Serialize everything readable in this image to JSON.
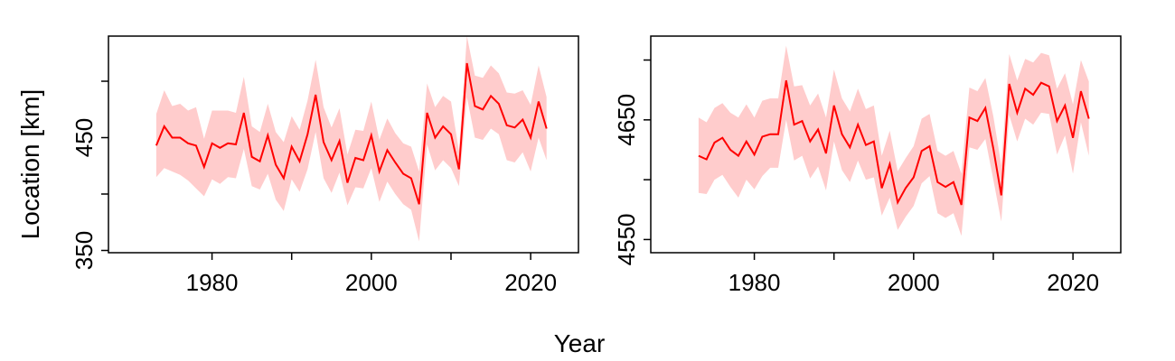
{
  "figure": {
    "xlabel": "Year",
    "ylabel": "Location [km]"
  },
  "colors": {
    "line": "#ff0000",
    "band": "#ffcccc",
    "axis": "#000000"
  },
  "chart_data": [
    {
      "type": "line",
      "xlim": [
        1967,
        2026
      ],
      "ylim": [
        348,
        540
      ],
      "xticks": [
        1980,
        1990,
        2000,
        2010,
        2020
      ],
      "xtick_labels": [
        "1980",
        "",
        "2000",
        "",
        "2020"
      ],
      "yticks": [
        350,
        400,
        450,
        500
      ],
      "ytick_labels": [
        "350",
        "",
        "450",
        ""
      ],
      "series": [
        {
          "x": [
            1973,
            1974,
            1975,
            1976,
            1977,
            1978,
            1979,
            1980,
            1981,
            1982,
            1983,
            1984,
            1985,
            1986,
            1987,
            1988,
            1989,
            1990,
            1991,
            1992,
            1993,
            1994,
            1995,
            1996,
            1997,
            1998,
            1999,
            2000,
            2001,
            2002,
            2003,
            2004,
            2005,
            2006,
            2007,
            2008,
            2009,
            2010,
            2011,
            2012,
            2013,
            2014,
            2015,
            2016,
            2017,
            2018,
            2019,
            2020,
            2021,
            2022
          ],
          "y": [
            443,
            460,
            450,
            450,
            445,
            443,
            424,
            445,
            441,
            445,
            444,
            472,
            433,
            429,
            452,
            426,
            414,
            442,
            429,
            453,
            488,
            446,
            430,
            447,
            410,
            432,
            430,
            452,
            420,
            439,
            428,
            418,
            414,
            391,
            472,
            450,
            460,
            453,
            422,
            516,
            478,
            475,
            487,
            480,
            461,
            459,
            466,
            450,
            482,
            458
          ],
          "lower": [
            415,
            423,
            420,
            417,
            412,
            405,
            398,
            413,
            409,
            415,
            414,
            440,
            407,
            404,
            418,
            395,
            385,
            413,
            402,
            422,
            455,
            414,
            401,
            419,
            390,
            406,
            405,
            423,
            393,
            411,
            400,
            391,
            386,
            358,
            444,
            421,
            430,
            423,
            407,
            486,
            450,
            448,
            458,
            453,
            430,
            428,
            437,
            420,
            450,
            430
          ],
          "upper": [
            471,
            492,
            478,
            480,
            474,
            477,
            449,
            474,
            474,
            474,
            472,
            504,
            460,
            455,
            480,
            455,
            446,
            469,
            457,
            483,
            519,
            477,
            459,
            476,
            435,
            457,
            456,
            482,
            448,
            467,
            454,
            445,
            442,
            420,
            498,
            477,
            487,
            482,
            438,
            540,
            505,
            503,
            514,
            507,
            490,
            489,
            492,
            479,
            514,
            486
          ]
        }
      ]
    },
    {
      "type": "line",
      "xlim": [
        1967,
        2026
      ],
      "ylim": [
        4539,
        4720
      ],
      "xticks": [
        1980,
        1990,
        2000,
        2010,
        2020
      ],
      "xtick_labels": [
        "1980",
        "",
        "2000",
        "",
        "2020"
      ],
      "yticks": [
        4550,
        4600,
        4650,
        4700
      ],
      "ytick_labels": [
        "4550",
        "",
        "4650",
        ""
      ],
      "series": [
        {
          "x": [
            1973,
            1974,
            1975,
            1976,
            1977,
            1978,
            1979,
            1980,
            1981,
            1982,
            1983,
            1984,
            1985,
            1986,
            1987,
            1988,
            1989,
            1990,
            1991,
            1992,
            1993,
            1994,
            1995,
            1996,
            1997,
            1998,
            1999,
            2000,
            2001,
            2002,
            2003,
            2004,
            2005,
            2006,
            2007,
            2008,
            2009,
            2010,
            2011,
            2012,
            2013,
            2014,
            2015,
            2016,
            2017,
            2018,
            2019,
            2020,
            2021,
            2022
          ],
          "y": [
            4620,
            4617,
            4631,
            4635,
            4625,
            4620,
            4632,
            4621,
            4636,
            4638,
            4638,
            4683,
            4646,
            4649,
            4632,
            4642,
            4622,
            4662,
            4638,
            4627,
            4646,
            4629,
            4632,
            4593,
            4613,
            4581,
            4593,
            4602,
            4624,
            4628,
            4598,
            4594,
            4598,
            4579,
            4652,
            4649,
            4660,
            4626,
            4587,
            4680,
            4656,
            4676,
            4671,
            4681,
            4678,
            4649,
            4662,
            4635,
            4674,
            4651
          ],
          "lower": [
            4589,
            4588,
            4600,
            4604,
            4594,
            4585,
            4600,
            4592,
            4603,
            4610,
            4610,
            4650,
            4616,
            4620,
            4601,
            4611,
            4591,
            4632,
            4608,
            4598,
            4616,
            4600,
            4602,
            4570,
            4585,
            4558,
            4569,
            4578,
            4597,
            4603,
            4572,
            4568,
            4572,
            4553,
            4627,
            4625,
            4634,
            4600,
            4565,
            4654,
            4632,
            4651,
            4646,
            4656,
            4655,
            4621,
            4637,
            4605,
            4648,
            4620
          ],
          "upper": [
            4652,
            4648,
            4660,
            4664,
            4656,
            4652,
            4663,
            4652,
            4666,
            4668,
            4668,
            4712,
            4678,
            4679,
            4662,
            4672,
            4652,
            4692,
            4668,
            4657,
            4676,
            4659,
            4662,
            4620,
            4641,
            4607,
            4618,
            4628,
            4651,
            4655,
            4624,
            4620,
            4624,
            4605,
            4677,
            4674,
            4685,
            4653,
            4612,
            4705,
            4683,
            4701,
            4698,
            4706,
            4704,
            4676,
            4689,
            4663,
            4700,
            4682
          ]
        }
      ]
    }
  ]
}
